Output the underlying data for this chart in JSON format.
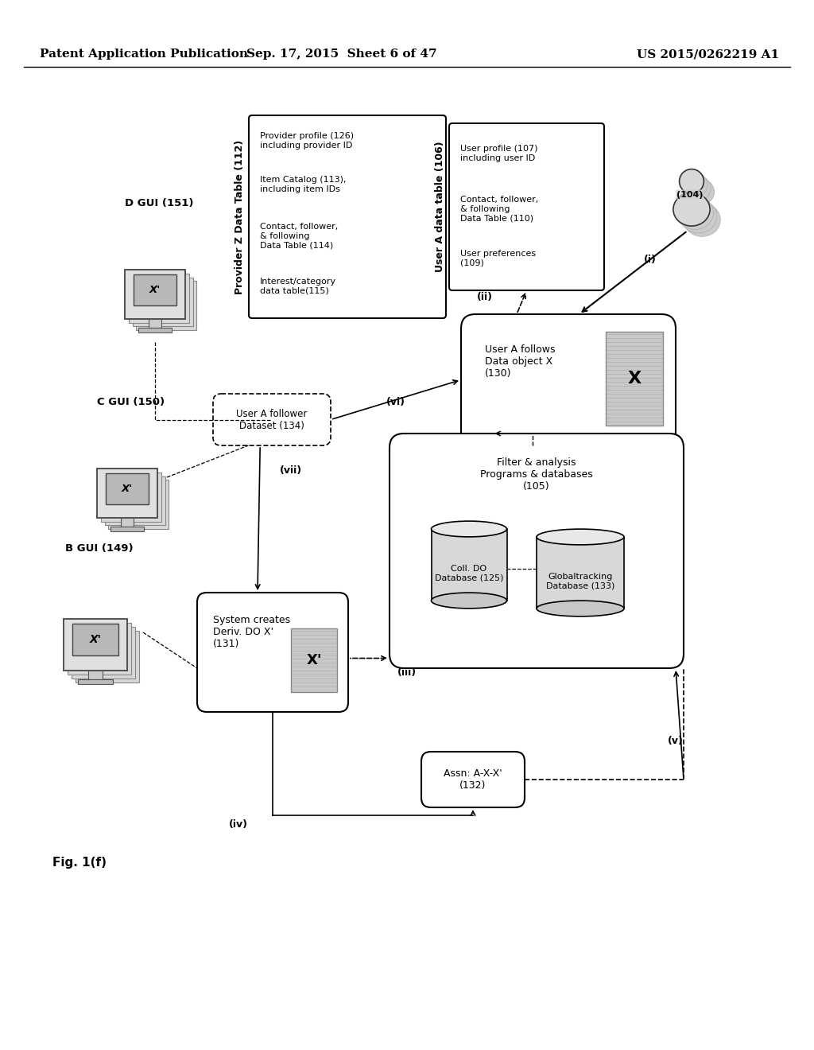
{
  "bg_color": "#ffffff",
  "header_left": "Patent Application Publication",
  "header_center": "Sep. 17, 2015  Sheet 6 of 47",
  "header_right": "US 2015/0262219 A1",
  "figure_label": "Fig. 1(f)",
  "title_provider_z": "Provider Z Data Table (112)",
  "title_user_a_data": "User A data table (106)",
  "box_provider_z_items": [
    "Provider profile (126)\nincluding provider ID",
    "Item Catalog (113),\nincluding item IDs",
    "Contact, follower,\n& following\nData Table (114)",
    "Interest/category\ndata table(115)"
  ],
  "box_user_a_items": [
    "User profile (107)\nincluding user ID",
    "Contact, follower,\n& following\nData Table (110)",
    "User preferences\n(109)"
  ],
  "user_a_follows_label": "User A follows\nData object X\n(130)",
  "system_creates_label": "System creates\nDeriv. DO X'\n(131)",
  "user_follower_label": "User A follower\nDataset (134)",
  "filter_analysis_label": "Filter & analysis\nPrograms & databases\n(105)",
  "coll_do_db_label": "Coll. DO\nDatabase (125)",
  "global_tracking_label": "Globaltracking\nDatabase (133)",
  "assn_label": "Assn: A-X-X'\n(132)",
  "b_gui_label": "B GUI (149)",
  "c_gui_label": "C GUI (150)",
  "d_gui_label": "D GUI (151)",
  "user_104_label": "(104)",
  "arrow_i": "(i)",
  "arrow_ii": "(ii)",
  "arrow_iii": "(iii)",
  "arrow_iv": "(iv)",
  "arrow_v": "(v)",
  "arrow_vi": "(vi)",
  "arrow_vii": "(vii)"
}
